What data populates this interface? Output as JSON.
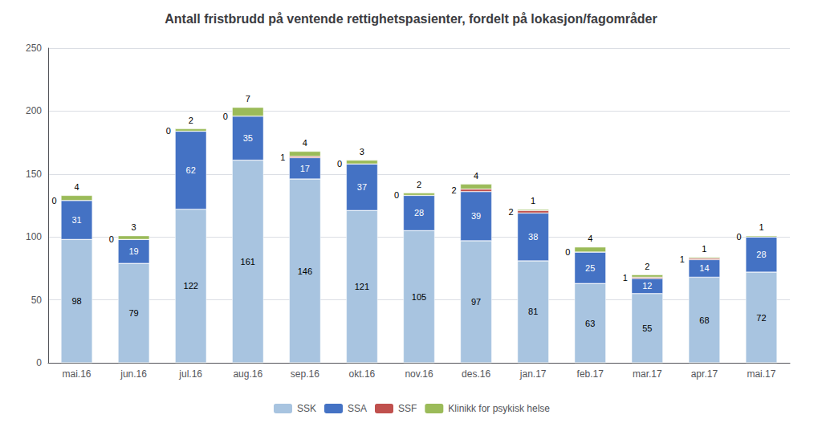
{
  "chart_data": {
    "type": "bar",
    "title": "Antall fristbrudd på ventende rettighetspasienter, fordelt på lokasjon/fagområder",
    "categories": [
      "mai.16",
      "jun.16",
      "jul.16",
      "aug.16",
      "sep.16",
      "okt.16",
      "nov.16",
      "des.16",
      "jan.17",
      "feb.17",
      "mar.17",
      "apr.17",
      "mai.17"
    ],
    "series": [
      {
        "name": "SSK",
        "color": "#a8c4e0",
        "values": [
          98,
          79,
          122,
          161,
          146,
          121,
          105,
          97,
          81,
          63,
          55,
          68,
          72
        ]
      },
      {
        "name": "SSA",
        "color": "#4472c4",
        "values": [
          31,
          19,
          62,
          35,
          17,
          37,
          28,
          39,
          38,
          25,
          12,
          14,
          28
        ]
      },
      {
        "name": "SSF",
        "color": "#c0504d",
        "values": [
          0,
          0,
          0,
          0,
          1,
          0,
          0,
          2,
          2,
          0,
          1,
          1,
          0
        ]
      },
      {
        "name": "Klinikk for psykisk helse",
        "color": "#9bbb59",
        "values": [
          4,
          3,
          2,
          7,
          4,
          3,
          2,
          4,
          1,
          4,
          2,
          1,
          1
        ]
      }
    ],
    "ylim": [
      0,
      250
    ],
    "yticks": [
      0,
      50,
      100,
      150,
      200,
      250
    ],
    "grid": true,
    "stacked": true,
    "legend": "bottom",
    "data_labels": true
  }
}
